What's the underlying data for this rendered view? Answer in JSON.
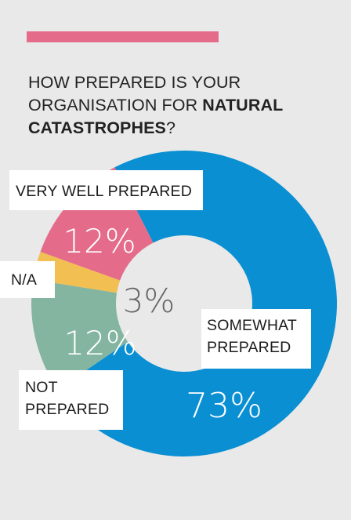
{
  "title": {
    "line1": "HOW PREPARED IS YOUR",
    "line2_plain": "ORGANISATION FOR ",
    "line2_bold": "NATURAL",
    "line3_bold": "CATASTROPHES",
    "line3_plain": "?"
  },
  "colors": {
    "accent": "#e46b8a",
    "background": "#e8e9e8"
  },
  "chart_data": {
    "type": "pie",
    "variant": "donut",
    "title": "HOW PREPARED IS YOUR ORGANISATION FOR NATURAL CATASTROPHES?",
    "slices": [
      {
        "label": "VERY WELL PREPARED",
        "value": 12,
        "value_label": "12%",
        "color": "#e46b8a",
        "value_text_color": "#ffffff"
      },
      {
        "label": "N/A",
        "value": 3,
        "value_label": "3%",
        "color": "#f2bf52",
        "value_text_color": "#666666"
      },
      {
        "label": "SOMEWHAT PREPARED",
        "value": 73,
        "value_label": "73%",
        "color": "#0a8fd3",
        "value_text_color": "#ffffff"
      },
      {
        "label": "NOT PREPARED",
        "value": 12,
        "value_label": "12%",
        "color": "#84b5a0",
        "value_text_color": "#ffffff"
      }
    ],
    "labels_display": [
      [
        "VERY WELL PREPARED"
      ],
      [
        "N/A"
      ],
      [
        "SOMEWHAT",
        "PREPARED"
      ],
      [
        "NOT",
        "PREPARED"
      ]
    ]
  }
}
